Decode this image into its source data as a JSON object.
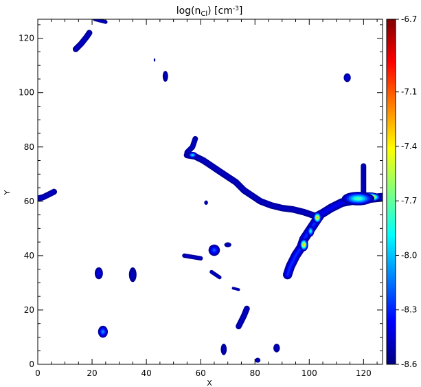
{
  "chart_data": {
    "type": "heatmap",
    "title": {
      "base": "log(n",
      "sub": "Cl",
      "mid": ") [cm",
      "sup": "-3",
      "end": "]"
    },
    "xlabel": "X",
    "ylabel": "Y",
    "xlim": [
      0,
      127
    ],
    "ylim": [
      0,
      127
    ],
    "x_ticks": [
      "0",
      "20",
      "40",
      "60",
      "80",
      "100",
      "120"
    ],
    "y_ticks": [
      "0",
      "20",
      "40",
      "60",
      "80",
      "100",
      "120"
    ],
    "colorbar": {
      "range": [
        -8.6,
        -6.7
      ],
      "tick_values": [
        -6.7,
        -7.1,
        -7.4,
        -7.7,
        -8.0,
        -8.3,
        -8.6
      ],
      "tick_labels": [
        "-6.7",
        "-7.1",
        "-7.4",
        "-7.7",
        "-8.0",
        "-8.3",
        "-8.6"
      ],
      "colormap": [
        "#00007f",
        "#0000ff",
        "#0080ff",
        "#00ffff",
        "#80ff80",
        "#ffff00",
        "#ff8000",
        "#ff0000",
        "#7f0000"
      ]
    },
    "background_color": "#ffffff",
    "filaments": [
      {
        "id": "main-filament",
        "width": 2.4,
        "level": 0.05,
        "points": [
          [
            55,
            77
          ],
          [
            58,
            76.5
          ],
          [
            61,
            75
          ],
          [
            64,
            73
          ],
          [
            67,
            71
          ],
          [
            70,
            69
          ],
          [
            73,
            67
          ],
          [
            76,
            64
          ],
          [
            79,
            62
          ],
          [
            82,
            60
          ],
          [
            86,
            58.5
          ],
          [
            90,
            57.5
          ],
          [
            94,
            57
          ],
          [
            98,
            56
          ],
          [
            101,
            55
          ],
          [
            104,
            54
          ]
        ]
      },
      {
        "id": "main-filament-hook",
        "width": 2.0,
        "level": 0.05,
        "points": [
          [
            55,
            78
          ],
          [
            57,
            80
          ],
          [
            58,
            83
          ]
        ]
      },
      {
        "id": "lower-branch",
        "width": 3.4,
        "level": 0.15,
        "points": [
          [
            104,
            55
          ],
          [
            102,
            52
          ],
          [
            100,
            49
          ],
          [
            98,
            46
          ],
          [
            97,
            43
          ],
          [
            95,
            40
          ],
          [
            93,
            36
          ],
          [
            92,
            33
          ]
        ]
      },
      {
        "id": "right-filament",
        "width": 3.2,
        "level": 0.1,
        "points": [
          [
            104,
            55
          ],
          [
            108,
            57.5
          ],
          [
            112,
            59.5
          ],
          [
            117,
            60.5
          ],
          [
            122,
            61
          ],
          [
            127,
            61.5
          ]
        ]
      },
      {
        "id": "right-upper-arm",
        "width": 2.0,
        "level": 0.05,
        "points": [
          [
            120,
            62
          ],
          [
            120,
            66
          ],
          [
            120,
            70
          ],
          [
            120,
            73
          ]
        ]
      },
      {
        "id": "left-edge-spur",
        "width": 2.2,
        "level": 0.05,
        "points": [
          [
            0,
            61
          ],
          [
            2,
            61.5
          ],
          [
            4,
            62.5
          ],
          [
            6,
            63.5
          ]
        ]
      },
      {
        "id": "upper-left-streak",
        "width": 2.2,
        "level": 0.05,
        "points": [
          [
            14,
            116
          ],
          [
            16,
            118
          ],
          [
            18,
            120.5
          ],
          [
            19,
            122
          ]
        ]
      },
      {
        "id": "top-streak",
        "width": 1.4,
        "level": 0.05,
        "points": [
          [
            21,
            127
          ],
          [
            23,
            126.5
          ],
          [
            25,
            126
          ]
        ]
      },
      {
        "id": "mid-streak-a",
        "width": 1.6,
        "level": 0.05,
        "points": [
          [
            54,
            40
          ],
          [
            57,
            39.5
          ],
          [
            60,
            39
          ]
        ]
      },
      {
        "id": "mid-streak-b",
        "width": 1.4,
        "level": 0.05,
        "points": [
          [
            64,
            34
          ],
          [
            65.5,
            33
          ],
          [
            67,
            32
          ]
        ]
      },
      {
        "id": "lower-streak",
        "width": 2.2,
        "level": 0.05,
        "points": [
          [
            74,
            14
          ],
          [
            75,
            16
          ],
          [
            76,
            18
          ],
          [
            77,
            20.5
          ]
        ]
      },
      {
        "id": "small-dash",
        "width": 1.0,
        "level": 0.05,
        "points": [
          [
            72,
            28
          ],
          [
            74,
            27.5
          ]
        ]
      }
    ],
    "peaks": [
      {
        "id": "peak-right-core",
        "x": 122,
        "y": 61.5,
        "rx": 4.5,
        "ry": 1.8,
        "level": 1.0
      },
      {
        "id": "peak-right-halo",
        "x": 118,
        "y": 61,
        "rx": 6,
        "ry": 2.5,
        "level": 0.45
      },
      {
        "id": "peak-branch-upper",
        "x": 103,
        "y": 54,
        "rx": 1.6,
        "ry": 2.2,
        "level": 0.7
      },
      {
        "id": "peak-branch-lower",
        "x": 98,
        "y": 44,
        "rx": 1.6,
        "ry": 2.4,
        "level": 0.7
      },
      {
        "id": "peak-branch-mid",
        "x": 100.5,
        "y": 49,
        "rx": 1.3,
        "ry": 2.0,
        "level": 0.4
      },
      {
        "id": "peak-filament-knee",
        "x": 57,
        "y": 77,
        "rx": 1.8,
        "ry": 1.2,
        "level": 0.35
      }
    ],
    "blobs": [
      {
        "id": "blob-a",
        "x": 47,
        "y": 106,
        "rx": 1.0,
        "ry": 2.0,
        "level": 0.05
      },
      {
        "id": "blob-b",
        "x": 114,
        "y": 105.5,
        "rx": 1.3,
        "ry": 1.6,
        "level": 0.1
      },
      {
        "id": "blob-c",
        "x": 43,
        "y": 112,
        "rx": 0.3,
        "ry": 0.6,
        "level": 0.05
      },
      {
        "id": "blob-d",
        "x": 62,
        "y": 59.5,
        "rx": 0.7,
        "ry": 0.8,
        "level": 0.05
      },
      {
        "id": "blob-e",
        "x": 65,
        "y": 42,
        "rx": 2.1,
        "ry": 2.1,
        "level": 0.2
      },
      {
        "id": "blob-f",
        "x": 70,
        "y": 44,
        "rx": 1.3,
        "ry": 0.9,
        "level": 0.05
      },
      {
        "id": "blob-g",
        "x": 22.5,
        "y": 33.5,
        "rx": 1.5,
        "ry": 2.2,
        "level": 0.1
      },
      {
        "id": "blob-h",
        "x": 35,
        "y": 33,
        "rx": 1.4,
        "ry": 2.7,
        "level": 0.05
      },
      {
        "id": "blob-i",
        "x": 24,
        "y": 12,
        "rx": 1.8,
        "ry": 2.2,
        "level": 0.25
      },
      {
        "id": "blob-j",
        "x": 68.5,
        "y": 5.5,
        "rx": 1.1,
        "ry": 2.1,
        "level": 0.05
      },
      {
        "id": "blob-k",
        "x": 88,
        "y": 6,
        "rx": 1.2,
        "ry": 1.6,
        "level": 0.05
      },
      {
        "id": "blob-l",
        "x": 81,
        "y": 1.5,
        "rx": 1.0,
        "ry": 0.9,
        "level": 0.05
      }
    ]
  }
}
